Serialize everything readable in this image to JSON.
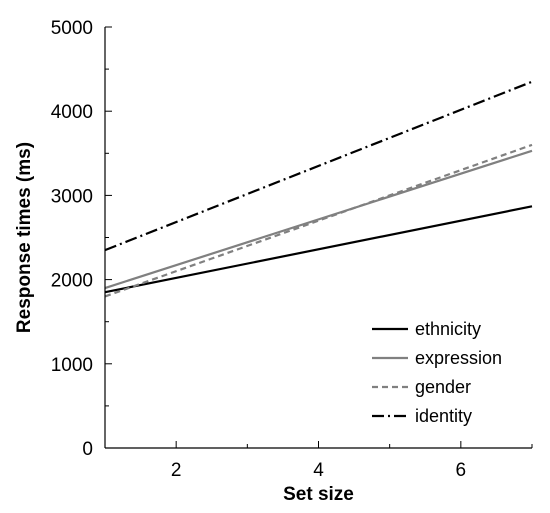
{
  "chart_data": {
    "type": "line",
    "title": "",
    "xlabel": "Set size",
    "ylabel": "Response times (ms)",
    "xlim": [
      1,
      7
    ],
    "ylim": [
      0,
      5000
    ],
    "xticks": [
      2,
      4,
      6
    ],
    "yticks": [
      0,
      1000,
      2000,
      3000,
      4000,
      5000
    ],
    "grid": false,
    "legend_position": "bottom-right",
    "series": [
      {
        "name": "ethnicity",
        "x": [
          1,
          7
        ],
        "y": [
          1850,
          2870
        ],
        "color": "#000000",
        "dash": "solid"
      },
      {
        "name": "expression",
        "x": [
          1,
          7
        ],
        "y": [
          1900,
          3530
        ],
        "color": "#808080",
        "dash": "solid"
      },
      {
        "name": "gender",
        "x": [
          1,
          7
        ],
        "y": [
          1800,
          3600
        ],
        "color": "#808080",
        "dash": "dashed"
      },
      {
        "name": "identity",
        "x": [
          1,
          7
        ],
        "y": [
          2350,
          4350
        ],
        "color": "#000000",
        "dash": "dashdot"
      }
    ]
  }
}
